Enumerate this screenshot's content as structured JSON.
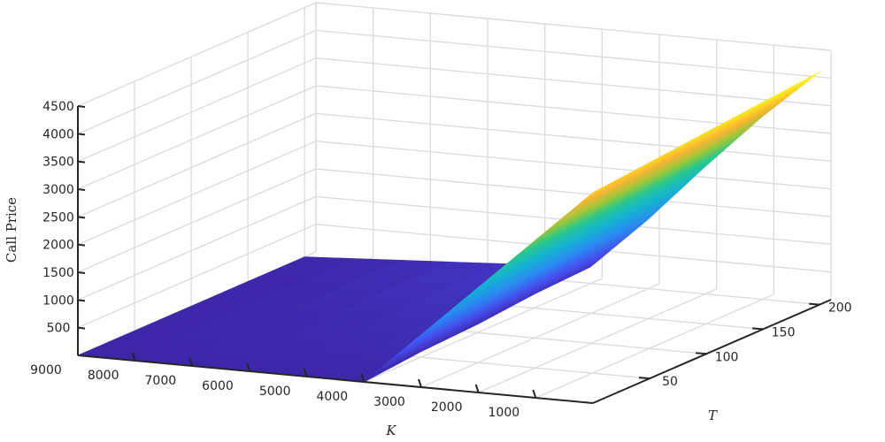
{
  "chart_data": {
    "type": "surface",
    "x": {
      "label": "K",
      "ticks": [
        1000,
        2000,
        3000,
        4000,
        5000,
        6000,
        7000,
        8000,
        9000
      ],
      "range": [
        0,
        9000
      ]
    },
    "y": {
      "label": "T",
      "ticks": [
        50,
        100,
        150,
        200
      ],
      "range": [
        0,
        210
      ]
    },
    "z": {
      "label": "Call Price",
      "ticks": [
        500,
        1000,
        1500,
        2000,
        2500,
        3000,
        3500,
        4000,
        4500
      ],
      "range": [
        0,
        4500
      ]
    },
    "grid": true,
    "colormap": "parula",
    "surface_colors": {
      "low": "#3e26a8",
      "mid": "#13b8b3",
      "high": "#f9fb15"
    },
    "surface": {
      "K": [
        0,
        1000,
        2000,
        3000,
        4000,
        9000
      ],
      "T": [
        0,
        50,
        100,
        150,
        200
      ],
      "price": [
        [
          3800,
          3900,
          4000,
          4100,
          4200
        ],
        [
          2850,
          2950,
          3050,
          3150,
          3300
        ],
        [
          1900,
          2000,
          2100,
          2200,
          2300
        ],
        [
          950,
          1000,
          1100,
          1200,
          1250
        ],
        [
          0,
          100,
          150,
          250,
          300
        ],
        [
          0,
          0,
          0,
          0,
          0
        ]
      ]
    }
  }
}
